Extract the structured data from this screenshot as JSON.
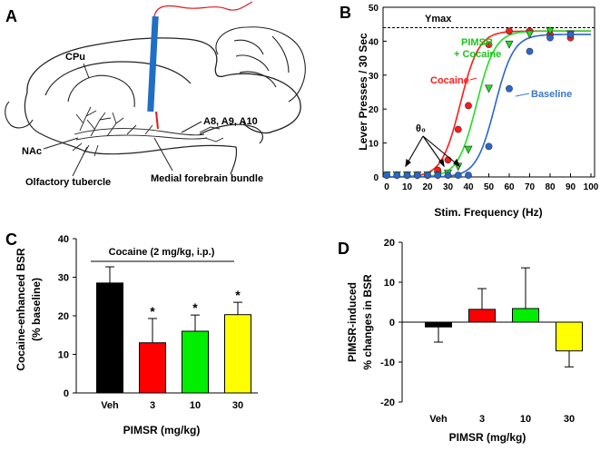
{
  "panels": {
    "a": {
      "letter": "A"
    },
    "b": {
      "letter": "B"
    },
    "c": {
      "letter": "C"
    },
    "d": {
      "letter": "D"
    }
  },
  "brain": {
    "labels": {
      "cpu": "CPu",
      "nac": "NAc",
      "a8": "A8, A9, A10",
      "olfactory": "Olfactory tubercle",
      "mfb": "Medial forebrain bundle"
    }
  },
  "colors": {
    "electrode": "#1f6fc6",
    "wire": "#e31a1c",
    "veh": "#000000",
    "dose3": "#ff0000",
    "dose10": "#00ee00",
    "dose30": "#ffff00",
    "cocaine": "#ff1a1a",
    "pimsr_cocaine": "#22dd22",
    "baseline": "#2a66cc",
    "label_blue": "#3a78c9",
    "label_green": "#19c519",
    "label_red": "#ff1a1a"
  },
  "chart_data": [
    {
      "panel": "B",
      "type": "line",
      "title": "",
      "xlabel": "Stim. Frequency (Hz)",
      "ylabel": "Lever Presses / 30 Sec",
      "xlim": [
        0,
        100
      ],
      "ylim": [
        0,
        50
      ],
      "xticks": [
        "0",
        "10",
        "20",
        "30",
        "40",
        "50",
        "60",
        "70",
        "80",
        "90",
        "100"
      ],
      "yticks": [
        "0",
        "10",
        "20",
        "30",
        "40",
        "50"
      ],
      "ymax_label": "Ymax",
      "ymax_value": 44,
      "theta_label": "θ₀",
      "series": [
        {
          "name": "Cocaine",
          "label": "Cocaine",
          "marker": "circle",
          "x": [
            0,
            5,
            10,
            15,
            20,
            25,
            30,
            35,
            40,
            50,
            60,
            70,
            80,
            90
          ],
          "y": [
            0.5,
            0.5,
            0.5,
            0.5,
            0.5,
            2,
            5,
            14,
            21,
            39,
            43,
            43,
            42,
            41
          ],
          "fit": {
            "x50": 36,
            "slope": 0.22,
            "max": 43
          }
        },
        {
          "name": "PIMSR + Cocaine",
          "label": "PIMSR\n+ Cocaine",
          "marker": "triangle",
          "x": [
            0,
            5,
            10,
            15,
            20,
            25,
            30,
            35,
            40,
            50,
            60,
            70,
            80,
            90
          ],
          "y": [
            0.5,
            0.5,
            0.5,
            0.5,
            0.5,
            0.5,
            1,
            3,
            8,
            26,
            39,
            42,
            43,
            42
          ],
          "fit": {
            "x50": 44,
            "slope": 0.22,
            "max": 43
          }
        },
        {
          "name": "Baseline",
          "label": "Baseline",
          "marker": "circle",
          "x": [
            0,
            5,
            10,
            15,
            20,
            25,
            30,
            35,
            40,
            50,
            60,
            70,
            80,
            90
          ],
          "y": [
            0.5,
            0.5,
            0.5,
            0.5,
            0.5,
            0.5,
            0.5,
            0.5,
            0.5,
            9,
            26,
            37,
            41,
            42
          ],
          "fit": {
            "x50": 53,
            "slope": 0.22,
            "max": 42
          }
        }
      ]
    },
    {
      "panel": "C",
      "type": "bar",
      "title": "",
      "annotation": "Cocaine (2 mg/kg, i.p.)",
      "xlabel": "PIMSR (mg/kg)",
      "ylabel": "Cocaine-enhanced BSR",
      "ylabel2": "(% baseline)",
      "ylim": [
        0,
        40
      ],
      "yticks": [
        "0",
        "10",
        "20",
        "30",
        "40"
      ],
      "categories": [
        "Veh",
        "3",
        "10",
        "30"
      ],
      "values": [
        28.5,
        13,
        16,
        20.3
      ],
      "errors": [
        4.2,
        6.3,
        4.2,
        3.2
      ],
      "significance": [
        "",
        "*",
        "*",
        "*"
      ]
    },
    {
      "panel": "D",
      "type": "bar",
      "title": "",
      "xlabel": "PIMSR (mg/kg)",
      "ylabel": "PIMSR-induced",
      "ylabel2": "% changes in BSR",
      "ylim": [
        -20,
        20
      ],
      "yticks": [
        "-20",
        "-10",
        "0",
        "10",
        "20"
      ],
      "categories": [
        "Veh",
        "3",
        "10",
        "30"
      ],
      "values": [
        -1.2,
        3.2,
        3.4,
        -7.2
      ],
      "errors": [
        3.8,
        5.2,
        10.2,
        4.0
      ]
    }
  ]
}
